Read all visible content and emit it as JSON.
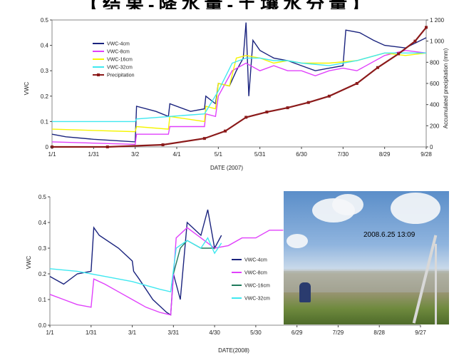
{
  "header_text": "【结果-降水量-土壤水分量】",
  "chart_data": [
    {
      "type": "line",
      "title": "",
      "xlabel": "DATE (2007)",
      "ylabel": "VWC",
      "y2label": "Accumulated precipitation (mm)",
      "ylim": [
        0,
        0.5
      ],
      "y2lim": [
        0,
        1200
      ],
      "x_tick_labels": [
        "1/1",
        "1/31",
        "3/2",
        "4/1",
        "5/1",
        "5/31",
        "6/30",
        "7/30",
        "8/29",
        "9/28"
      ],
      "y_tick_labels": [
        "0",
        "0.1",
        "0.2",
        "0.3",
        "0.4",
        "0.5"
      ],
      "y2_tick_labels": [
        "0",
        "200",
        "400",
        "600",
        "800",
        "1 000",
        "1 200"
      ],
      "legend_position": "top-left",
      "series": [
        {
          "name": "VWC-4cm",
          "color": "#1a237e",
          "axis": "left",
          "points": [
            [
              0,
              0.05
            ],
            [
              10,
              0.04
            ],
            [
              30,
              0.03
            ],
            [
              60,
              0.02
            ],
            [
              61,
              0.16
            ],
            [
              75,
              0.14
            ],
            [
              84,
              0.12
            ],
            [
              85,
              0.17
            ],
            [
              100,
              0.14
            ],
            [
              110,
              0.15
            ],
            [
              111,
              0.2
            ],
            [
              118,
              0.17
            ],
            [
              120,
              0.25
            ],
            [
              128,
              0.24
            ],
            [
              133,
              0.3
            ],
            [
              138,
              0.35
            ],
            [
              140,
              0.49
            ],
            [
              142,
              0.2
            ],
            [
              145,
              0.42
            ],
            [
              150,
              0.38
            ],
            [
              160,
              0.35
            ],
            [
              170,
              0.34
            ],
            [
              180,
              0.32
            ],
            [
              190,
              0.3
            ],
            [
              200,
              0.31
            ],
            [
              210,
              0.32
            ],
            [
              212,
              0.46
            ],
            [
              222,
              0.45
            ],
            [
              232,
              0.42
            ],
            [
              240,
              0.4
            ],
            [
              255,
              0.39
            ],
            [
              270,
              0.43
            ]
          ]
        },
        {
          "name": "VWC-8cm",
          "color": "#e040fb",
          "axis": "left",
          "points": [
            [
              0,
              0.02
            ],
            [
              30,
              0.015
            ],
            [
              60,
              0.01
            ],
            [
              61,
              0.05
            ],
            [
              84,
              0.05
            ],
            [
              85,
              0.08
            ],
            [
              110,
              0.08
            ],
            [
              111,
              0.13
            ],
            [
              118,
              0.12
            ],
            [
              120,
              0.2
            ],
            [
              130,
              0.3
            ],
            [
              140,
              0.33
            ],
            [
              150,
              0.3
            ],
            [
              160,
              0.32
            ],
            [
              170,
              0.3
            ],
            [
              180,
              0.3
            ],
            [
              190,
              0.28
            ],
            [
              200,
              0.3
            ],
            [
              210,
              0.31
            ],
            [
              220,
              0.3
            ],
            [
              240,
              0.36
            ],
            [
              255,
              0.38
            ],
            [
              270,
              0.37
            ]
          ]
        },
        {
          "name": "VWC-16cm",
          "color": "#f5f500",
          "axis": "left",
          "points": [
            [
              0,
              0.07
            ],
            [
              30,
              0.065
            ],
            [
              60,
              0.06
            ],
            [
              61,
              0.08
            ],
            [
              84,
              0.07
            ],
            [
              85,
              0.12
            ],
            [
              110,
              0.1
            ],
            [
              111,
              0.16
            ],
            [
              118,
              0.15
            ],
            [
              120,
              0.25
            ],
            [
              128,
              0.24
            ],
            [
              133,
              0.35
            ],
            [
              140,
              0.36
            ],
            [
              150,
              0.35
            ],
            [
              160,
              0.33
            ],
            [
              170,
              0.34
            ],
            [
              180,
              0.33
            ],
            [
              200,
              0.33
            ],
            [
              220,
              0.34
            ],
            [
              240,
              0.37
            ],
            [
              255,
              0.36
            ],
            [
              270,
              0.37
            ]
          ]
        },
        {
          "name": "VWC-32cm",
          "color": "#40e8f0",
          "axis": "left",
          "points": [
            [
              0,
              0.1
            ],
            [
              30,
              0.1
            ],
            [
              60,
              0.1
            ],
            [
              61,
              0.11
            ],
            [
              85,
              0.12
            ],
            [
              110,
              0.13
            ],
            [
              120,
              0.22
            ],
            [
              130,
              0.33
            ],
            [
              140,
              0.35
            ],
            [
              150,
              0.35
            ],
            [
              160,
              0.34
            ],
            [
              170,
              0.34
            ],
            [
              180,
              0.33
            ],
            [
              200,
              0.32
            ],
            [
              220,
              0.34
            ],
            [
              240,
              0.37
            ],
            [
              255,
              0.37
            ],
            [
              270,
              0.37
            ]
          ]
        },
        {
          "name": "Precipitation",
          "color": "#8b1a1a",
          "axis": "right",
          "points": [
            [
              0,
              0
            ],
            [
              40,
              0
            ],
            [
              80,
              20
            ],
            [
              110,
              80
            ],
            [
              125,
              150
            ],
            [
              140,
              280
            ],
            [
              155,
              330
            ],
            [
              170,
              370
            ],
            [
              185,
              420
            ],
            [
              200,
              480
            ],
            [
              220,
              600
            ],
            [
              235,
              750
            ],
            [
              250,
              880
            ],
            [
              262,
              1000
            ],
            [
              270,
              1130
            ]
          ]
        }
      ]
    },
    {
      "type": "line",
      "title": "",
      "xlabel": "DATE(2008)",
      "ylabel": "VWC",
      "ylim": [
        0,
        0.5
      ],
      "x_tick_labels": [
        "1/1",
        "1/31",
        "3/1",
        "3/31",
        "4/30",
        "5/30",
        "6/29",
        "7/29",
        "8/28",
        "9/27"
      ],
      "y_tick_labels": [
        "0.0",
        "0.1",
        "0.2",
        "0.3",
        "0.4",
        "0.5"
      ],
      "legend_position": "middle",
      "series": [
        {
          "name": "VWC-4cm",
          "color": "#1a237e",
          "points": [
            [
              0,
              0.19
            ],
            [
              10,
              0.16
            ],
            [
              20,
              0.2
            ],
            [
              30,
              0.21
            ],
            [
              32,
              0.38
            ],
            [
              36,
              0.35
            ],
            [
              50,
              0.3
            ],
            [
              60,
              0.25
            ],
            [
              61,
              0.21
            ],
            [
              65,
              0.18
            ],
            [
              75,
              0.1
            ],
            [
              85,
              0.05
            ],
            [
              88,
              0.04
            ],
            [
              90,
              0.2
            ],
            [
              95,
              0.1
            ],
            [
              100,
              0.4
            ],
            [
              110,
              0.35
            ],
            [
              115,
              0.45
            ],
            [
              120,
              0.3
            ],
            [
              125,
              0.35
            ]
          ]
        },
        {
          "name": "VWC-8cm",
          "color": "#e040fb",
          "points": [
            [
              0,
              0.12
            ],
            [
              10,
              0.1
            ],
            [
              20,
              0.08
            ],
            [
              30,
              0.07
            ],
            [
              32,
              0.18
            ],
            [
              40,
              0.16
            ],
            [
              50,
              0.13
            ],
            [
              60,
              0.1
            ],
            [
              70,
              0.07
            ],
            [
              80,
              0.05
            ],
            [
              88,
              0.04
            ],
            [
              92,
              0.34
            ],
            [
              100,
              0.38
            ],
            [
              110,
              0.34
            ],
            [
              120,
              0.3
            ],
            [
              130,
              0.31
            ],
            [
              140,
              0.34
            ],
            [
              150,
              0.34
            ],
            [
              160,
              0.37
            ],
            [
              170,
              0.37
            ]
          ]
        },
        {
          "name": "VWC-16cm",
          "color": "#1f7a5c",
          "points": [
            [
              90,
              0.2
            ],
            [
              95,
              0.3
            ],
            [
              100,
              0.33
            ],
            [
              110,
              0.3
            ],
            [
              120,
              0.3
            ]
          ]
        },
        {
          "name": "VWC-32cm",
          "color": "#40e8f0",
          "points": [
            [
              0,
              0.22
            ],
            [
              20,
              0.21
            ],
            [
              40,
              0.19
            ],
            [
              60,
              0.17
            ],
            [
              80,
              0.14
            ],
            [
              88,
              0.13
            ],
            [
              92,
              0.3
            ],
            [
              100,
              0.33
            ],
            [
              110,
              0.3
            ],
            [
              115,
              0.34
            ],
            [
              120,
              0.28
            ],
            [
              125,
              0.32
            ]
          ]
        }
      ]
    }
  ],
  "photo": {
    "timestamp": "2008.6.25 13:09"
  }
}
